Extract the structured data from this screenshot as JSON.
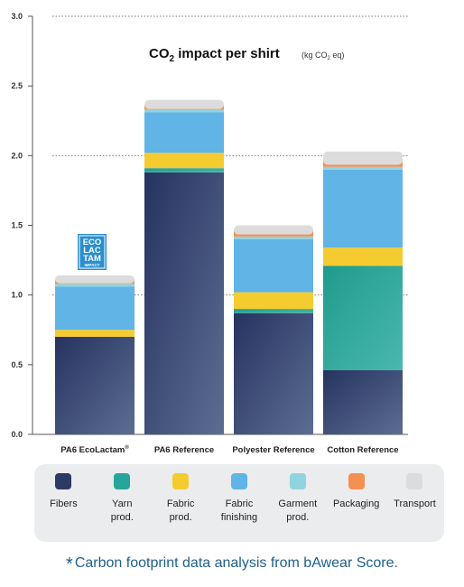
{
  "chart_data": {
    "type": "bar",
    "stacked": true,
    "title": "CO2 impact per shirt",
    "title_main": "CO",
    "title_subscript": "2",
    "title_rest": " impact per shirt",
    "title_unit": "(kg CO2 eq)",
    "title_unit_parts": [
      "(kg CO",
      "2",
      " eq)"
    ],
    "ylim": [
      0,
      3.0
    ],
    "yticks": [
      "0.0",
      "0.5",
      "1.0",
      "1.5",
      "2.0",
      "2.5",
      "3.0"
    ],
    "grid": "dotted horizontal at 1.0, 2.0, 3.0",
    "categories": [
      "PA6 EcoLactam",
      "PA6 Reference",
      "Polyester Reference",
      "Cotton Reference"
    ],
    "category_marks": [
      "®",
      "",
      "",
      ""
    ],
    "series": [
      {
        "name": "Fibers",
        "color": "#2d3a64",
        "values": [
          0.7,
          1.88,
          0.87,
          0.46
        ]
      },
      {
        "name": "Yarn prod.",
        "color": "#27a59a",
        "values": [
          0.0,
          0.03,
          0.03,
          0.75
        ]
      },
      {
        "name": "Fabric prod.",
        "color": "#f5cc2f",
        "values": [
          0.05,
          0.11,
          0.12,
          0.13
        ]
      },
      {
        "name": "Fabric finishing",
        "color": "#60b4e6",
        "values": [
          0.31,
          0.29,
          0.38,
          0.56
        ]
      },
      {
        "name": "Garment prod.",
        "color": "#8fd4df",
        "values": [
          0.02,
          0.02,
          0.02,
          0.02
        ]
      },
      {
        "name": "Packaging",
        "color": "#f58f52",
        "values": [
          0.03,
          0.03,
          0.04,
          0.04
        ]
      },
      {
        "name": "Transport",
        "color": "#dcdcdc",
        "values": [
          0.03,
          0.04,
          0.04,
          0.07
        ]
      }
    ],
    "legend_placement": "bottom"
  },
  "badge": {
    "line1": "ECO",
    "line2": "LAC",
    "line3": "TAM",
    "line4": "IMPACT",
    "color": "#2a8fcf"
  },
  "legend": {
    "items": [
      {
        "lines": [
          "Fibers"
        ],
        "color": "#2d3a64"
      },
      {
        "lines": [
          "Yarn",
          "prod."
        ],
        "color": "#27a59a"
      },
      {
        "lines": [
          "Fabric",
          "prod."
        ],
        "color": "#f5cc2f"
      },
      {
        "lines": [
          "Fabric",
          "finishing"
        ],
        "color": "#60b4e6"
      },
      {
        "lines": [
          "Garment",
          "prod."
        ],
        "color": "#8fd4df"
      },
      {
        "lines": [
          "Packaging"
        ],
        "color": "#f58f52"
      },
      {
        "lines": [
          "Transport"
        ],
        "color": "#dcdcdc"
      }
    ]
  },
  "footnote": {
    "star": "*",
    "text": "Carbon footprint data analysis from bAwear Score."
  }
}
